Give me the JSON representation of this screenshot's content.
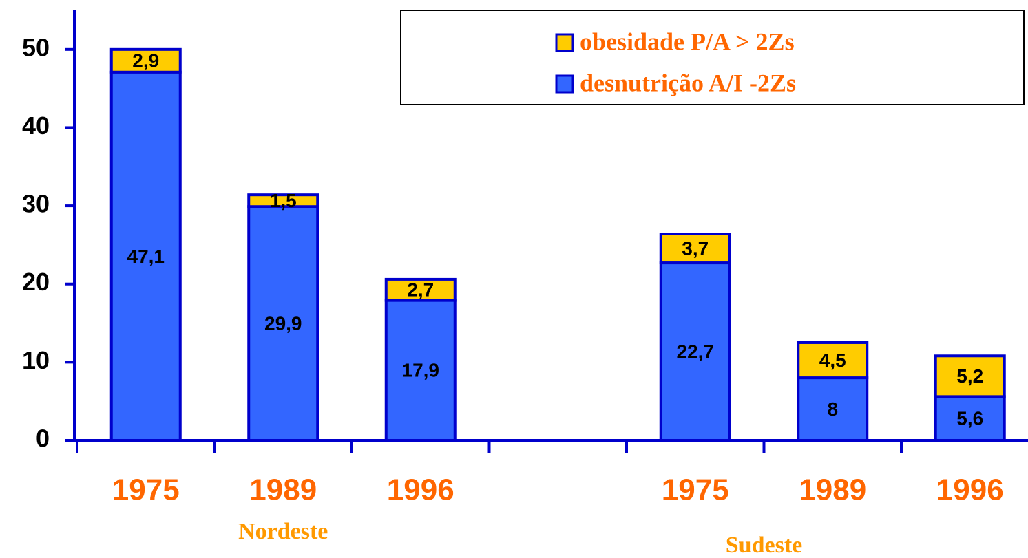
{
  "chart_data": {
    "type": "bar",
    "stacked": true,
    "categories": [
      "1975",
      "1989",
      "1996",
      null,
      "1975",
      "1989",
      "1996"
    ],
    "series": [
      {
        "name": "desnutrição A/I -2Zs",
        "color": "#3366ff",
        "values": [
          47.1,
          29.9,
          17.9,
          null,
          22.7,
          8,
          5.6
        ],
        "value_labels": [
          "47,1",
          "29,9",
          "17,9",
          null,
          "22,7",
          "8",
          "5,6"
        ]
      },
      {
        "name": "obesidade P/A > 2Zs",
        "color": "#ffcc00",
        "values": [
          2.9,
          1.5,
          2.7,
          null,
          3.7,
          4.5,
          5.2
        ],
        "value_labels": [
          "2,9",
          "1,5",
          "2,7",
          null,
          "3,7",
          "4,5",
          "5,2"
        ]
      }
    ],
    "annotations": [
      "Nordeste",
      "Sudeste"
    ],
    "ylim": [
      0,
      55
    ],
    "yticks": [
      0,
      10,
      20,
      30,
      40,
      50
    ],
    "legend": "top-right",
    "grid": false
  }
}
